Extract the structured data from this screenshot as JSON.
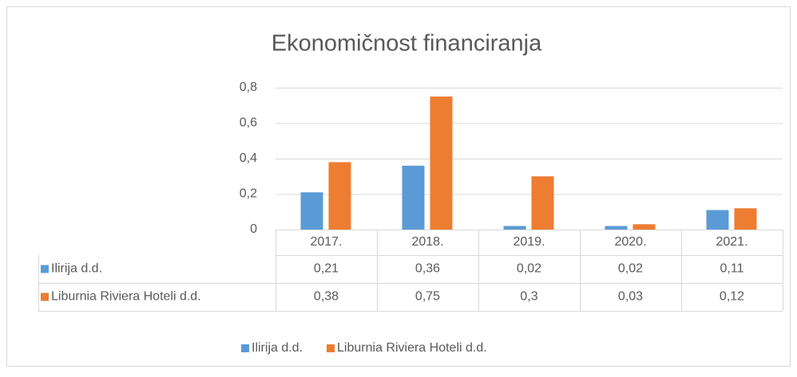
{
  "chart_data": {
    "type": "bar",
    "title": "Ekonomičnost financiranja",
    "categories": [
      "2017.",
      "2018.",
      "2019.",
      "2020.",
      "2021."
    ],
    "series": [
      {
        "name": "Ilirija d.d.",
        "color": "#5b9bd5",
        "values": [
          0.21,
          0.36,
          0.02,
          0.02,
          0.11
        ],
        "value_labels": [
          "0,21",
          "0,36",
          "0,02",
          "0,02",
          "0,11"
        ]
      },
      {
        "name": "Liburnia Riviera Hoteli d.d.",
        "color": "#ed7d31",
        "values": [
          0.38,
          0.75,
          0.3,
          0.03,
          0.12
        ],
        "value_labels": [
          "0,38",
          "0,75",
          "0,3",
          "0,03",
          "0,12"
        ]
      }
    ],
    "ylim": [
      0,
      0.8
    ],
    "yticks": [
      0,
      {
        "value": 0.2,
        "label": "0,2"
      },
      {
        "value": 0.4,
        "label": "0,4"
      },
      {
        "value": 0.6,
        "label": "0,6"
      },
      {
        "value": 0.8,
        "label": "0,8"
      }
    ],
    "grid": true,
    "legend": "bottom",
    "data_table": true
  }
}
